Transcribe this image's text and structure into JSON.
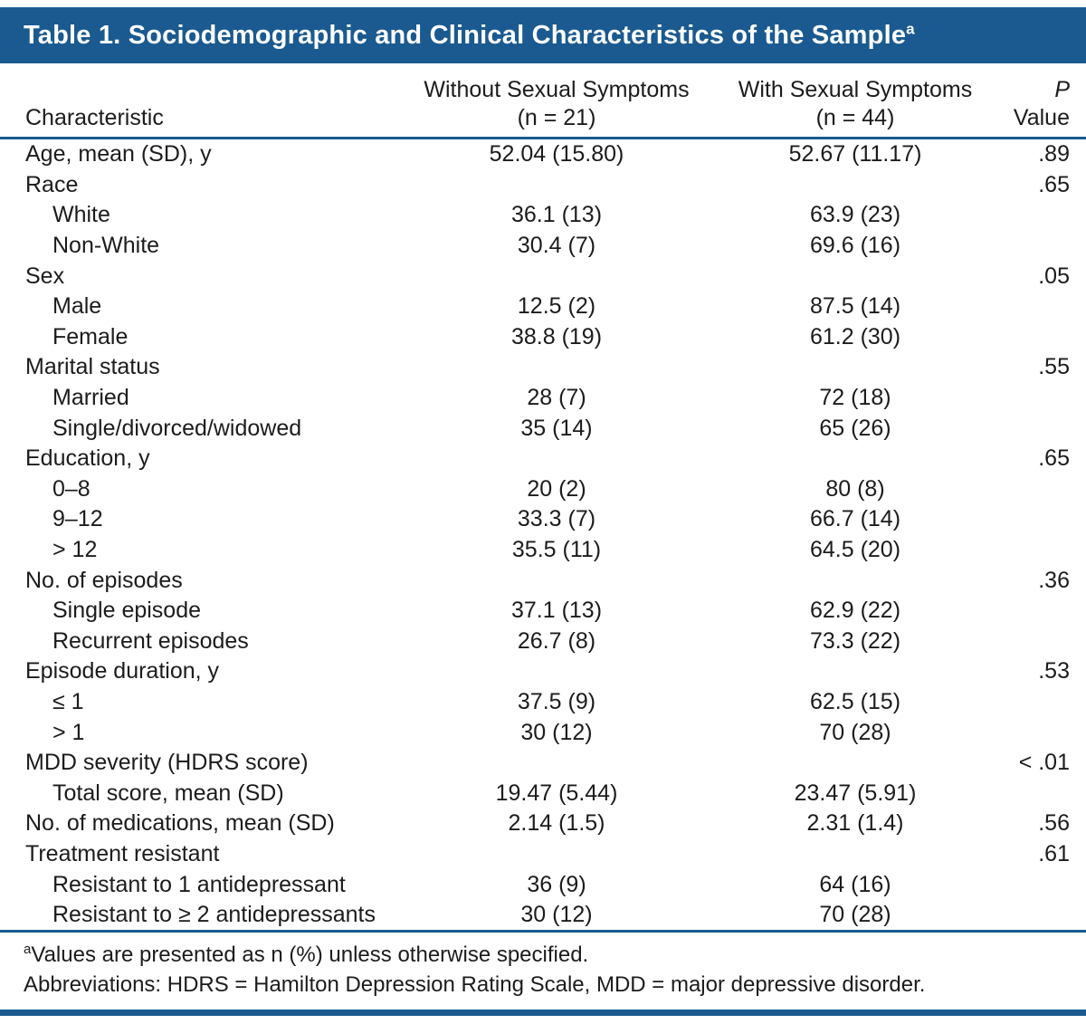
{
  "colors": {
    "accent_blue": "#1a5a90",
    "text": "#1c1c1c",
    "title_text": "#ffffff"
  },
  "title": {
    "text": "Table 1. Sociodemographic and Clinical Characteristics of the Sample",
    "superscript": "a"
  },
  "columns": {
    "characteristic": "Characteristic",
    "without_line1": "Without Sexual Symptoms",
    "without_line2": "(n = 21)",
    "with_line1": "With Sexual Symptoms",
    "with_line2": "(n = 44)",
    "p_line1": "P",
    "p_line2": "Value"
  },
  "rows": [
    {
      "label": "Age, mean (SD), y",
      "indent": false,
      "without": "52.04 (15.80)",
      "with": "52.67 (11.17)",
      "p": ".89"
    },
    {
      "label": "Race",
      "indent": false,
      "without": "",
      "with": "",
      "p": ".65"
    },
    {
      "label": "White",
      "indent": true,
      "without": "36.1 (13)",
      "with": "63.9 (23)",
      "p": ""
    },
    {
      "label": "Non-White",
      "indent": true,
      "without": "30.4 (7)",
      "with": "69.6 (16)",
      "p": ""
    },
    {
      "label": "Sex",
      "indent": false,
      "without": "",
      "with": "",
      "p": ".05"
    },
    {
      "label": "Male",
      "indent": true,
      "without": "12.5 (2)",
      "with": "87.5 (14)",
      "p": ""
    },
    {
      "label": "Female",
      "indent": true,
      "without": "38.8 (19)",
      "with": "61.2 (30)",
      "p": ""
    },
    {
      "label": "Marital status",
      "indent": false,
      "without": "",
      "with": "",
      "p": ".55"
    },
    {
      "label": "Married",
      "indent": true,
      "without": "28 (7)",
      "with": "72 (18)",
      "p": ""
    },
    {
      "label": "Single/divorced/widowed",
      "indent": true,
      "without": "35 (14)",
      "with": "65 (26)",
      "p": ""
    },
    {
      "label": "Education, y",
      "indent": false,
      "without": "",
      "with": "",
      "p": ".65"
    },
    {
      "label": "0–8",
      "indent": true,
      "without": "20 (2)",
      "with": "80 (8)",
      "p": ""
    },
    {
      "label": "9–12",
      "indent": true,
      "without": "33.3 (7)",
      "with": "66.7 (14)",
      "p": ""
    },
    {
      "label": "> 12",
      "indent": true,
      "without": "35.5 (11)",
      "with": "64.5 (20)",
      "p": ""
    },
    {
      "label": "No. of episodes",
      "indent": false,
      "without": "",
      "with": "",
      "p": ".36"
    },
    {
      "label": "Single episode",
      "indent": true,
      "without": "37.1 (13)",
      "with": "62.9 (22)",
      "p": ""
    },
    {
      "label": "Recurrent episodes",
      "indent": true,
      "without": "26.7 (8)",
      "with": "73.3 (22)",
      "p": ""
    },
    {
      "label": "Episode duration, y",
      "indent": false,
      "without": "",
      "with": "",
      "p": ".53"
    },
    {
      "label": "≤ 1",
      "indent": true,
      "without": "37.5 (9)",
      "with": "62.5 (15)",
      "p": ""
    },
    {
      "label": "> 1",
      "indent": true,
      "without": "30 (12)",
      "with": "70 (28)",
      "p": ""
    },
    {
      "label": "MDD severity (HDRS score)",
      "indent": false,
      "without": "",
      "with": "",
      "p": "< .01"
    },
    {
      "label": "Total score, mean (SD)",
      "indent": true,
      "without": "19.47 (5.44)",
      "with": "23.47 (5.91)",
      "p": ""
    },
    {
      "label": "No. of medications, mean (SD)",
      "indent": false,
      "without": "2.14 (1.5)",
      "with": "2.31 (1.4)",
      "p": ".56"
    },
    {
      "label": "Treatment resistant",
      "indent": false,
      "without": "",
      "with": "",
      "p": ".61"
    },
    {
      "label": "Resistant to 1 antidepressant",
      "indent": true,
      "without": "36 (9)",
      "with": "64 (16)",
      "p": ""
    },
    {
      "label": "Resistant to ≥ 2 antidepressants",
      "indent": true,
      "without": "30 (12)",
      "with": "70 (28)",
      "p": ""
    }
  ],
  "footnotes": [
    {
      "marker": "a",
      "text": "Values are presented as n (%) unless otherwise specified."
    },
    {
      "marker": "",
      "text": "Abbreviations: HDRS = Hamilton Depression Rating Scale, MDD = major depressive disorder."
    }
  ]
}
